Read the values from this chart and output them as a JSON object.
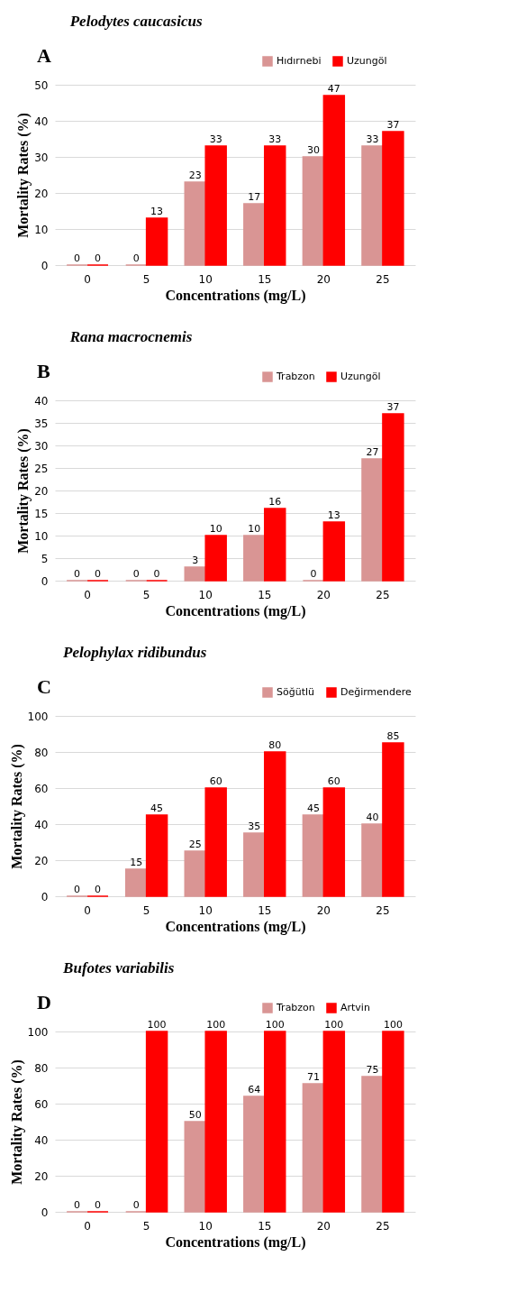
{
  "chart_data": [
    {
      "type": "bar",
      "title": "Pelodytes caucasicus",
      "annotations": [
        "A"
      ],
      "xlabel": "Concentrations (mg/L)",
      "ylabel": "Mortality Rates (%)",
      "categories": [
        "0",
        "5",
        "10",
        "15",
        "20",
        "25"
      ],
      "series": [
        {
          "name": "Hıdırnebi",
          "color": "#d99594",
          "values": [
            0,
            0,
            23,
            17,
            30,
            33
          ]
        },
        {
          "name": "Uzungöl",
          "color": "#ff0000",
          "values": [
            0,
            13,
            33,
            33,
            47,
            37
          ]
        }
      ],
      "ylim": [
        0,
        50
      ],
      "yticks": [
        0,
        10,
        20,
        30,
        40,
        50
      ],
      "grid": "y",
      "legend": "top right",
      "data_labels": true
    },
    {
      "type": "bar",
      "title": "Rana macrocnemis",
      "annotations": [
        "B"
      ],
      "xlabel": "Concentrations (mg/L)",
      "ylabel": "Mortality Rates (%)",
      "categories": [
        "0",
        "5",
        "10",
        "15",
        "20",
        "25"
      ],
      "series": [
        {
          "name": "Trabzon",
          "color": "#d99594",
          "values": [
            0,
            0,
            3,
            10,
            0,
            27
          ]
        },
        {
          "name": "Uzungöl",
          "color": "#ff0000",
          "values": [
            0,
            0,
            10,
            16,
            13,
            37
          ]
        }
      ],
      "ylim": [
        0,
        40
      ],
      "yticks": [
        0,
        5,
        10,
        15,
        20,
        25,
        30,
        35,
        40
      ],
      "grid": "y",
      "legend": "top right",
      "data_labels": true
    },
    {
      "type": "bar",
      "title": "Pelophylax ridibundus",
      "annotations": [
        "C"
      ],
      "xlabel": "Concentrations (mg/L)",
      "ylabel": "Mortality Rates (%)",
      "categories": [
        "0",
        "5",
        "10",
        "15",
        "20",
        "25"
      ],
      "series": [
        {
          "name": "Söğütlü",
          "color": "#d99594",
          "values": [
            0,
            15,
            25,
            35,
            45,
            40
          ]
        },
        {
          "name": "Değirmendere",
          "color": "#ff0000",
          "values": [
            0,
            45,
            60,
            80,
            60,
            85
          ]
        }
      ],
      "ylim": [
        0,
        100
      ],
      "yticks": [
        0,
        20,
        40,
        60,
        80,
        100
      ],
      "grid": "y",
      "legend": "top right",
      "data_labels": true
    },
    {
      "type": "bar",
      "title": "Bufotes variabilis",
      "annotations": [
        "D"
      ],
      "xlabel": "Concentrations (mg/L)",
      "ylabel": "Mortality Rates (%)",
      "categories": [
        "0",
        "5",
        "10",
        "15",
        "20",
        "25"
      ],
      "series": [
        {
          "name": "Trabzon",
          "color": "#d99594",
          "values": [
            0,
            0,
            50,
            64,
            71,
            75
          ]
        },
        {
          "name": "Artvin",
          "color": "#ff0000",
          "values": [
            0,
            100,
            100,
            100,
            100,
            100
          ]
        }
      ],
      "ylim": [
        0,
        100
      ],
      "yticks": [
        0,
        20,
        40,
        60,
        80,
        100
      ],
      "grid": "y",
      "legend": "top right",
      "data_labels": true
    }
  ]
}
